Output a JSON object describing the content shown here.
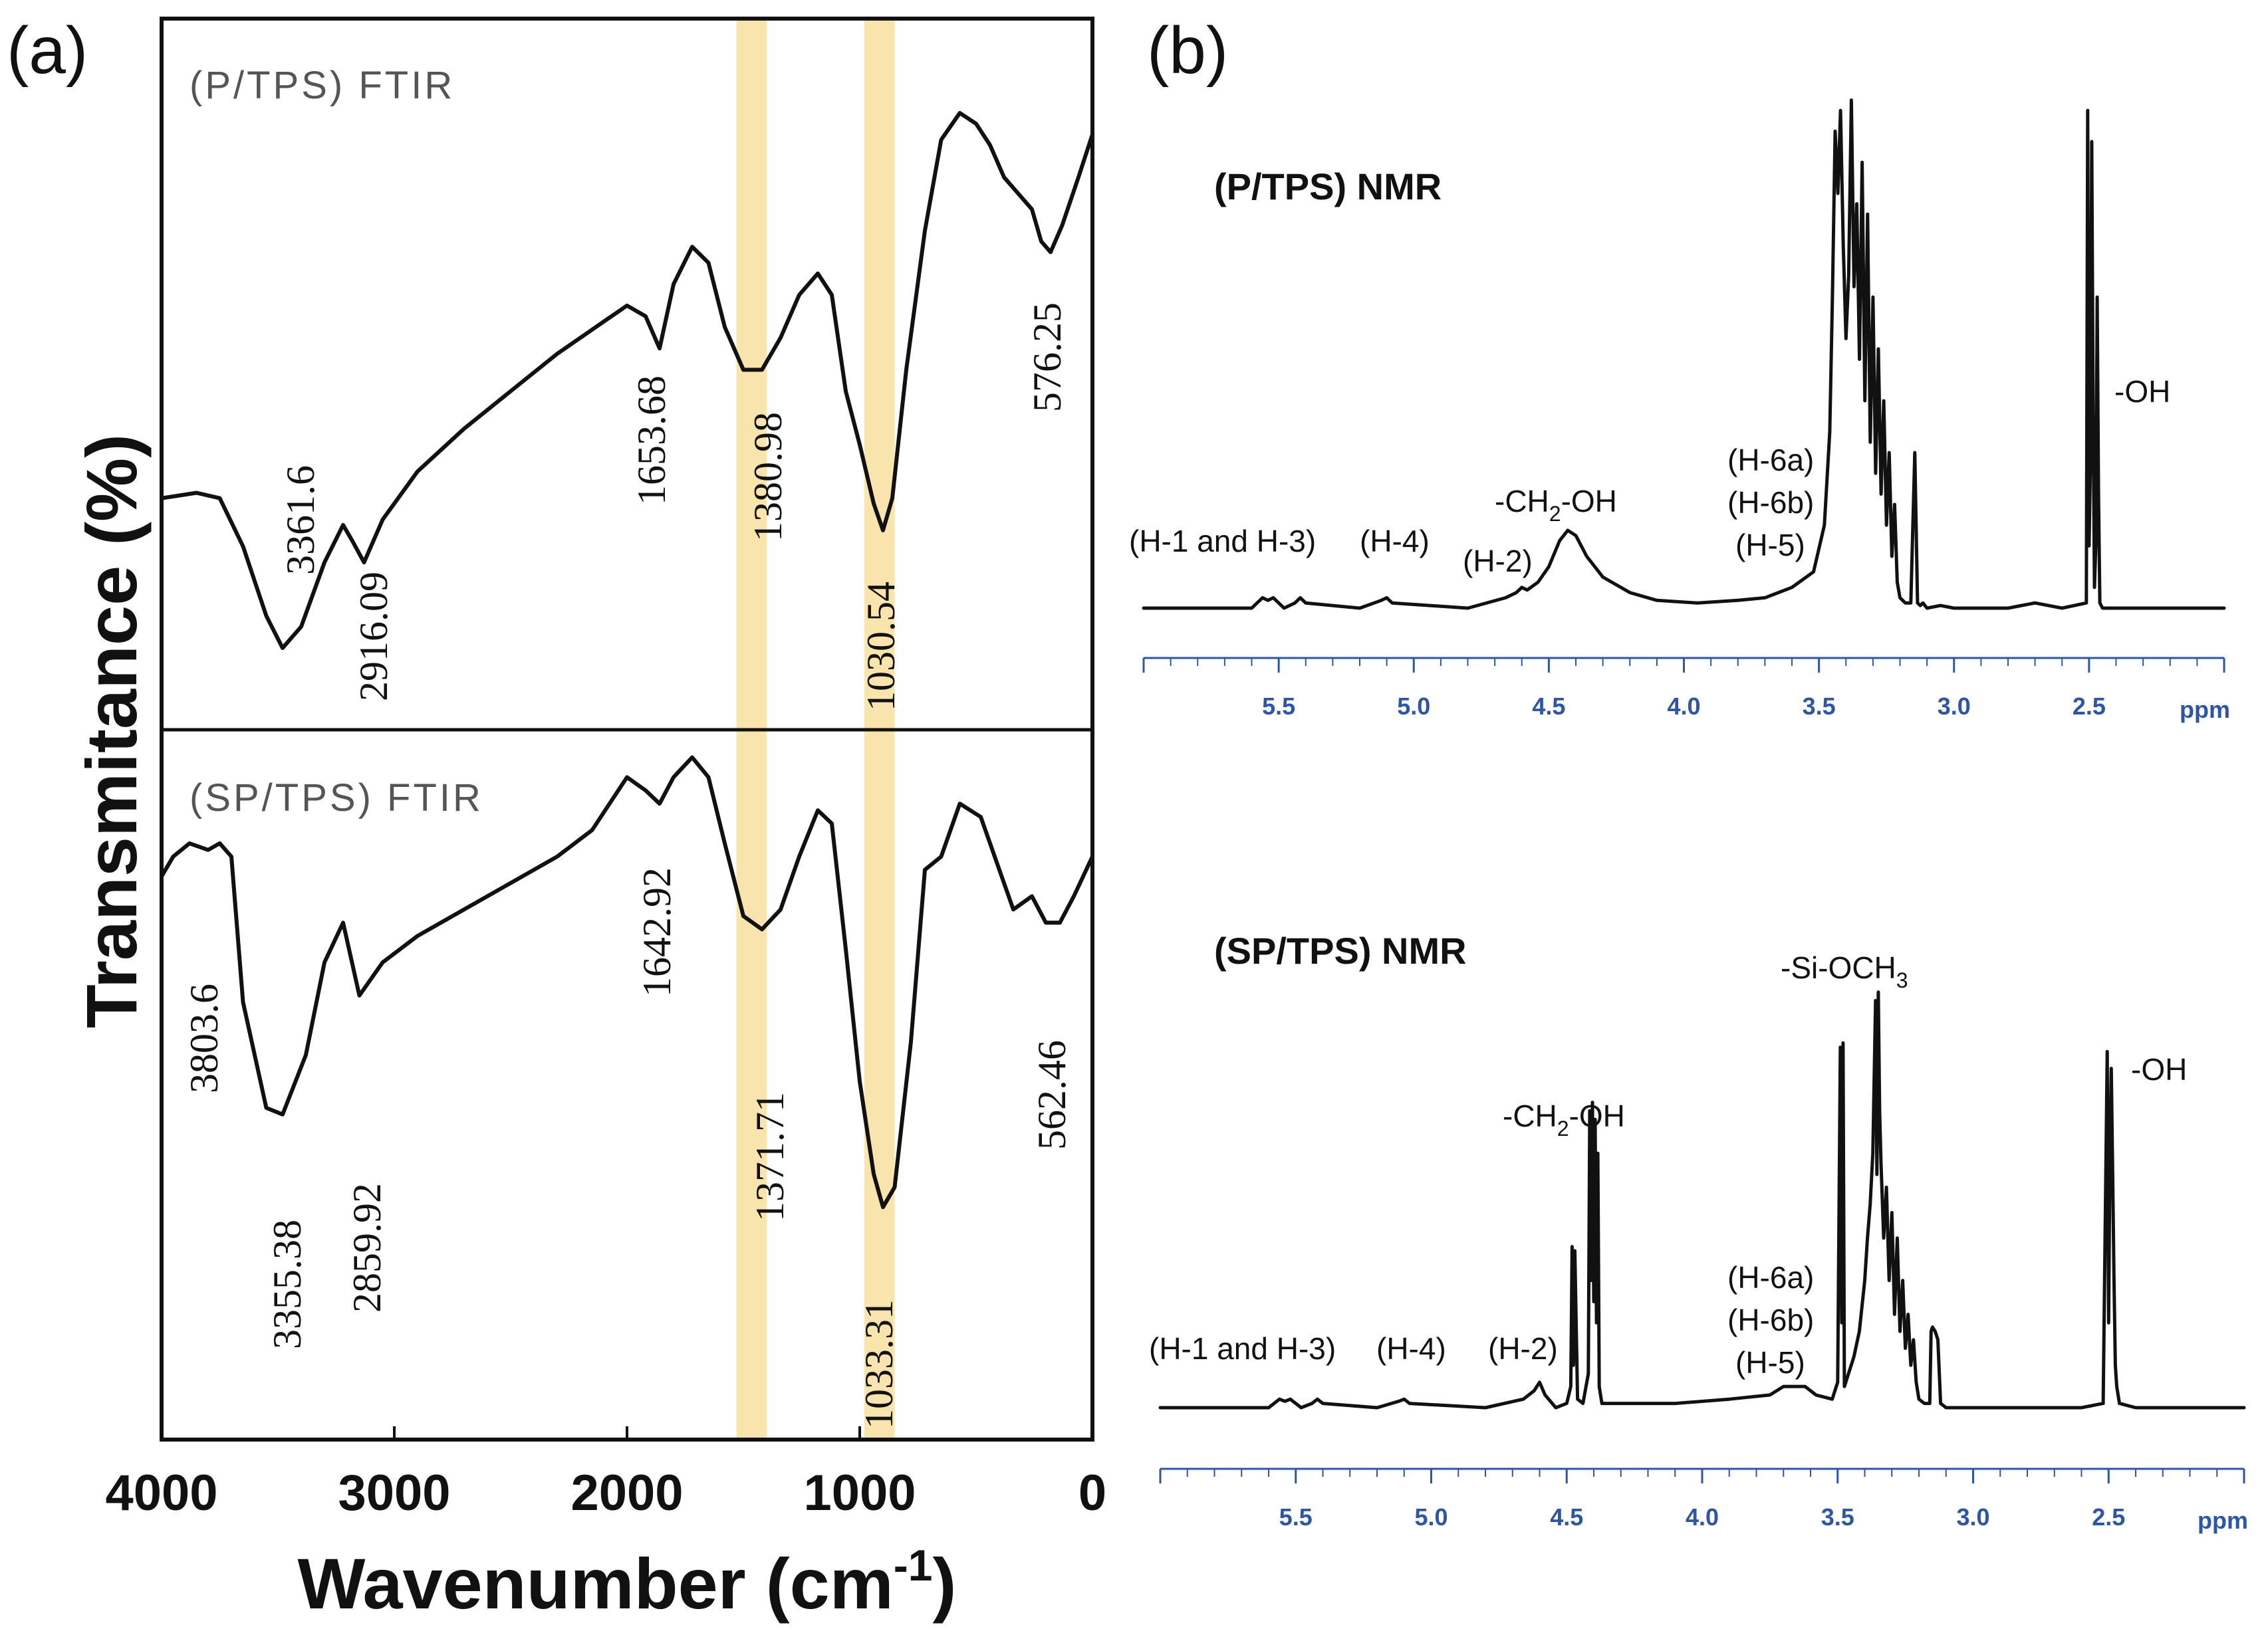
{
  "chart_data": [
    {
      "type": "line",
      "panel": "(a)",
      "technique": "FTIR",
      "xlabel": "Wavenumber (cm",
      "xlabel_sup": "-1",
      "xlabel_close": ")",
      "ylabel": "Transmitance (%)",
      "xlim": [
        4000,
        0
      ],
      "x_ticks": [
        "4000",
        "3000",
        "2000",
        "1000",
        "0"
      ],
      "highlight_bands": [
        [
          1530,
          1400
        ],
        [
          980,
          850
        ]
      ],
      "highlight_color": "#f8dfa0",
      "series": [
        {
          "name": "(P/TPS) FTIR",
          "x": [
            4000,
            3850,
            3750,
            3650,
            3550,
            3480,
            3400,
            3300,
            3220,
            3180,
            3130,
            3050,
            2900,
            2700,
            2500,
            2300,
            2100,
            2000,
            1920,
            1860,
            1800,
            1720,
            1650,
            1580,
            1500,
            1420,
            1340,
            1260,
            1180,
            1120,
            1060,
            1000,
            940,
            900,
            860,
            800,
            720,
            650,
            570,
            500,
            440,
            380,
            320,
            260,
            220,
            180,
            130,
            60,
            0
          ],
          "y": [
            0.28,
            0.29,
            0.28,
            0.19,
            0.06,
            0.0,
            0.04,
            0.16,
            0.23,
            0.2,
            0.16,
            0.24,
            0.33,
            0.41,
            0.48,
            0.55,
            0.61,
            0.64,
            0.62,
            0.56,
            0.68,
            0.75,
            0.72,
            0.6,
            0.52,
            0.52,
            0.58,
            0.66,
            0.7,
            0.66,
            0.48,
            0.38,
            0.27,
            0.22,
            0.28,
            0.52,
            0.78,
            0.95,
            1.0,
            0.98,
            0.94,
            0.88,
            0.85,
            0.82,
            0.76,
            0.74,
            0.79,
            0.88,
            0.96
          ]
        },
        {
          "name": "(SP/TPS) FTIR",
          "x": [
            4000,
            3950,
            3880,
            3800,
            3750,
            3700,
            3650,
            3550,
            3480,
            3380,
            3300,
            3220,
            3150,
            3050,
            2900,
            2700,
            2500,
            2300,
            2150,
            2000,
            1920,
            1860,
            1800,
            1720,
            1650,
            1580,
            1500,
            1420,
            1340,
            1260,
            1180,
            1120,
            1060,
            1000,
            940,
            900,
            850,
            780,
            720,
            650,
            570,
            480,
            400,
            340,
            260,
            200,
            140,
            80,
            0
          ],
          "y": [
            0.73,
            0.76,
            0.78,
            0.77,
            0.78,
            0.76,
            0.54,
            0.38,
            0.37,
            0.46,
            0.6,
            0.66,
            0.55,
            0.6,
            0.64,
            0.68,
            0.72,
            0.76,
            0.8,
            0.88,
            0.86,
            0.84,
            0.88,
            0.91,
            0.88,
            0.78,
            0.67,
            0.65,
            0.68,
            0.76,
            0.83,
            0.81,
            0.62,
            0.42,
            0.28,
            0.23,
            0.26,
            0.48,
            0.74,
            0.76,
            0.84,
            0.82,
            0.74,
            0.68,
            0.7,
            0.66,
            0.66,
            0.7,
            0.76
          ]
        }
      ],
      "peak_labels": [
        {
          "series": "(P/TPS) FTIR",
          "text": "3361.6",
          "x": 3450,
          "y": 0.12
        },
        {
          "series": "(P/TPS) FTIR",
          "text": "2916.09",
          "x": 3120,
          "y": -0.05
        },
        {
          "series": "(P/TPS) FTIR",
          "text": "1653.68",
          "x": 1950,
          "y": 0.42
        },
        {
          "series": "(P/TPS) FTIR",
          "text": "1380.98",
          "x": 1470,
          "y": 0.38
        },
        {
          "series": "(P/TPS) FTIR",
          "text": "1030.54",
          "x": 950,
          "y": 0.0
        },
        {
          "series": "(P/TPS) FTIR",
          "text": "576.25",
          "x": 240,
          "y": 0.58
        },
        {
          "series": "(SP/TPS) FTIR",
          "text": "3803.6",
          "x": 3850,
          "y": 0.44
        },
        {
          "series": "(SP/TPS) FTIR",
          "text": "3355.38",
          "x": 3480,
          "y": 0.06
        },
        {
          "series": "(SP/TPS) FTIR",
          "text": "2859.92",
          "x": 3170,
          "y": 0.1
        },
        {
          "series": "(SP/TPS) FTIR",
          "text": "1642.92",
          "x": 1920,
          "y": 0.56
        },
        {
          "series": "(SP/TPS) FTIR",
          "text": "1371.71",
          "x": 1470,
          "y": 0.2
        },
        {
          "series": "(SP/TPS) FTIR",
          "text": "1033.31",
          "x": 930,
          "y": -0.06
        },
        {
          "series": "(SP/TPS) FTIR",
          "text": "562.46",
          "x": 280,
          "y": 0.32
        }
      ]
    },
    {
      "type": "line",
      "panel": "(b)",
      "technique": "1H NMR",
      "xlabel": "ppm",
      "xlim": [
        6.0,
        2.0
      ],
      "x_ticks": [
        "5.5",
        "5.0",
        "4.5",
        "4.0",
        "3.5",
        "3.0",
        "2.5"
      ],
      "x_tick_values": [
        5.5,
        5.0,
        4.5,
        4.0,
        3.5,
        3.0,
        2.5
      ],
      "series": [
        {
          "name": "(P/TPS) NMR",
          "x": [
            6.0,
            5.6,
            5.56,
            5.54,
            5.52,
            5.48,
            5.44,
            5.42,
            5.4,
            5.2,
            5.12,
            5.1,
            5.08,
            4.8,
            4.66,
            4.62,
            4.6,
            4.58,
            4.54,
            4.5,
            4.46,
            4.43,
            4.4,
            4.36,
            4.3,
            4.2,
            4.1,
            3.95,
            3.8,
            3.7,
            3.6,
            3.52,
            3.48,
            3.46,
            3.45,
            3.44,
            3.43,
            3.42,
            3.41,
            3.4,
            3.39,
            3.38,
            3.37,
            3.36,
            3.35,
            3.34,
            3.33,
            3.32,
            3.31,
            3.3,
            3.29,
            3.28,
            3.27,
            3.26,
            3.25,
            3.24,
            3.23,
            3.22,
            3.21,
            3.2,
            3.18,
            3.16,
            3.145,
            3.135,
            3.125,
            3.115,
            3.1,
            3.05,
            3.0,
            2.8,
            2.7,
            2.6,
            2.51,
            2.505,
            2.5,
            2.495,
            2.49,
            2.485,
            2.48,
            2.475,
            2.47,
            2.465,
            2.46,
            2.45,
            2.4,
            2.3,
            2.0
          ],
          "y": [
            0.0,
            0.0,
            0.02,
            0.015,
            0.02,
            0.0,
            0.01,
            0.02,
            0.01,
            0.0,
            0.015,
            0.02,
            0.01,
            0.0,
            0.02,
            0.03,
            0.04,
            0.035,
            0.05,
            0.08,
            0.13,
            0.15,
            0.14,
            0.1,
            0.06,
            0.03,
            0.015,
            0.01,
            0.015,
            0.02,
            0.04,
            0.07,
            0.16,
            0.34,
            0.6,
            0.92,
            0.8,
            0.96,
            0.7,
            0.52,
            0.64,
            0.98,
            0.62,
            0.78,
            0.48,
            0.86,
            0.4,
            0.76,
            0.32,
            0.6,
            0.26,
            0.5,
            0.22,
            0.4,
            0.16,
            0.3,
            0.1,
            0.2,
            0.05,
            0.02,
            0.01,
            0.01,
            0.3,
            0.01,
            0.005,
            0.01,
            0.0,
            0.005,
            0.0,
            0.0,
            0.01,
            0.0,
            0.01,
            0.96,
            0.12,
            0.28,
            0.9,
            0.38,
            0.04,
            0.12,
            0.6,
            0.22,
            0.01,
            0.0,
            0.0,
            0.0,
            0.0
          ],
          "labels": [
            "(H-1 and H-3)",
            "(H-4)",
            "-CH",
            "(H-2)",
            "(H-6a)",
            "(H-6b)",
            "(H-5)",
            "-OH"
          ]
        },
        {
          "name": "(SP/TPS) NMR",
          "x": [
            6.0,
            5.6,
            5.56,
            5.54,
            5.52,
            5.48,
            5.44,
            5.42,
            5.4,
            5.2,
            5.12,
            5.1,
            5.08,
            4.8,
            4.66,
            4.62,
            4.6,
            4.58,
            4.54,
            4.5,
            4.485,
            4.48,
            4.475,
            4.47,
            4.46,
            4.44,
            4.42,
            4.415,
            4.41,
            4.405,
            4.4,
            4.395,
            4.39,
            4.385,
            4.38,
            4.37,
            4.3,
            4.1,
            3.9,
            3.75,
            3.7,
            3.62,
            3.58,
            3.52,
            3.5,
            3.49,
            3.485,
            3.48,
            3.475,
            3.47,
            3.44,
            3.42,
            3.4,
            3.39,
            3.38,
            3.37,
            3.36,
            3.355,
            3.35,
            3.345,
            3.34,
            3.33,
            3.32,
            3.31,
            3.3,
            3.29,
            3.28,
            3.27,
            3.26,
            3.25,
            3.24,
            3.23,
            3.22,
            3.21,
            3.2,
            3.18,
            3.16,
            3.155,
            3.15,
            3.14,
            3.135,
            3.13,
            3.12,
            3.1,
            3.0,
            2.8,
            2.6,
            2.52,
            2.505,
            2.5,
            2.495,
            2.49,
            2.485,
            2.48,
            2.475,
            2.47,
            2.46,
            2.4,
            2.0
          ],
          "y": [
            0.0,
            0.0,
            0.02,
            0.015,
            0.02,
            0.0,
            0.01,
            0.02,
            0.01,
            0.0,
            0.015,
            0.02,
            0.01,
            0.0,
            0.02,
            0.04,
            0.06,
            0.03,
            0.0,
            0.01,
            0.05,
            0.38,
            0.1,
            0.37,
            0.02,
            0.01,
            0.08,
            0.7,
            0.3,
            0.72,
            0.25,
            0.68,
            0.2,
            0.6,
            0.05,
            0.01,
            0.01,
            0.01,
            0.02,
            0.03,
            0.05,
            0.05,
            0.03,
            0.02,
            0.06,
            0.85,
            0.2,
            0.86,
            0.05,
            0.06,
            0.12,
            0.18,
            0.3,
            0.4,
            0.48,
            0.6,
            0.96,
            0.55,
            0.98,
            0.7,
            0.58,
            0.4,
            0.52,
            0.3,
            0.46,
            0.22,
            0.4,
            0.18,
            0.3,
            0.14,
            0.22,
            0.1,
            0.16,
            0.06,
            0.02,
            0.01,
            0.01,
            0.18,
            0.19,
            0.18,
            0.17,
            0.16,
            0.01,
            0.0,
            0.0,
            0.0,
            0.0,
            0.01,
            0.84,
            0.2,
            0.6,
            0.8,
            0.55,
            0.3,
            0.1,
            0.05,
            0.01,
            0.0,
            0.0
          ],
          "labels": [
            "(H-1 and H-3)",
            "(H-4)",
            "(H-2)",
            "-CH",
            "(H-6a)",
            "(H-6b)",
            "(H-5)",
            "-Si-OCH",
            "-OH"
          ]
        }
      ]
    }
  ],
  "panels": {
    "a": {
      "letter": "(a)",
      "top_title": "(P/TPS) FTIR",
      "bottom_title": "(SP/TPS) FTIR",
      "ylabel": "Transmitance (%)",
      "xlabel": "Wavenumber (cm",
      "xlabel_sup": "-1",
      "xlabel_close": ")",
      "ticks": [
        "4000",
        "3000",
        "2000",
        "1000",
        "0"
      ],
      "peaks_top": [
        "3361.6",
        "2916.09",
        "1653.68",
        "1380.98",
        "1030.54",
        "576.25"
      ],
      "peaks_bottom": [
        "3803.6",
        "3355.38",
        "2859.92",
        "1642.92",
        "1371.71",
        "1033.31",
        "562.46"
      ]
    },
    "b": {
      "letter": "(b)",
      "top": {
        "title": "(P/TPS) NMR",
        "label_h13": "(H-1 and H-3)",
        "label_h4": "(H-4)",
        "label_ch2_pre": "-CH",
        "label_ch2_sub": "2",
        "label_ch2_post": "-OH",
        "label_h2": "(H-2)",
        "label_h6a": "(H-6a)",
        "label_h6b": "(H-6b)",
        "label_h5": "(H-5)",
        "label_oh": "-OH"
      },
      "bottom": {
        "title": "(SP/TPS) NMR",
        "label_h13": "(H-1 and H-3)",
        "label_h4": "(H-4)",
        "label_h2": "(H-2)",
        "label_ch2_pre": "-CH",
        "label_ch2_sub": "2",
        "label_ch2_post": "-OH",
        "label_h6a": "(H-6a)",
        "label_h6b": "(H-6b)",
        "label_h5": "(H-5)",
        "label_sioch3_pre": "-Si-OCH",
        "label_sioch3_sub": "3",
        "label_oh": "-OH"
      },
      "ticks": [
        "5.5",
        "5.0",
        "4.5",
        "4.0",
        "3.5",
        "3.0",
        "2.5"
      ],
      "unit": "ppm"
    }
  }
}
